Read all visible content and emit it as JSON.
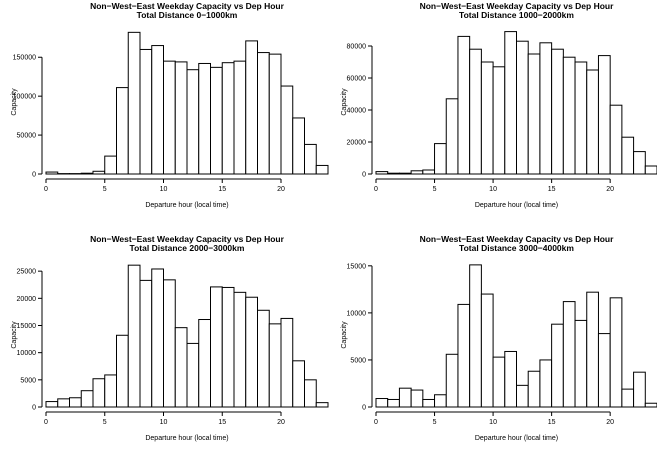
{
  "chart_data": [
    {
      "type": "bar",
      "title": "Non−West−East Weekday Capacity vs Dep Hour",
      "subtitle": "Total Distance 0−1000km",
      "xlabel": "Departure hour (local time)",
      "ylabel": "Capacity",
      "x": [
        0,
        1,
        2,
        3,
        4,
        5,
        6,
        7,
        8,
        9,
        10,
        11,
        12,
        13,
        14,
        15,
        16,
        17,
        18,
        19,
        20,
        21,
        22,
        23
      ],
      "values": [
        2500,
        500,
        500,
        1000,
        3500,
        23000,
        111000,
        182000,
        160000,
        165000,
        145000,
        144000,
        134000,
        142000,
        137000,
        143000,
        145000,
        171000,
        156000,
        154000,
        113000,
        72000,
        38000,
        11000
      ],
      "xlim": [
        0,
        24
      ],
      "ylim": [
        0,
        185000
      ],
      "xticks": [
        0,
        5,
        10,
        15,
        20
      ],
      "yticks": [
        0,
        50000,
        100000,
        150000
      ]
    },
    {
      "type": "bar",
      "title": "Non−West−East Weekday Capacity vs Dep Hour",
      "subtitle": "Total Distance 1000−2000km",
      "xlabel": "Departure hour (local time)",
      "ylabel": "Capacity",
      "x": [
        0,
        1,
        2,
        3,
        4,
        5,
        6,
        7,
        8,
        9,
        10,
        11,
        12,
        13,
        14,
        15,
        16,
        17,
        18,
        19,
        20,
        21,
        22,
        23
      ],
      "values": [
        1500,
        500,
        500,
        2000,
        2500,
        19000,
        47000,
        86000,
        78000,
        70000,
        67000,
        89000,
        83000,
        75000,
        82000,
        78000,
        73000,
        70000,
        65000,
        74000,
        43000,
        23000,
        14000,
        5000
      ],
      "xlim": [
        0,
        24
      ],
      "ylim": [
        0,
        90000
      ],
      "xticks": [
        0,
        5,
        10,
        15,
        20
      ],
      "yticks": [
        0,
        20000,
        40000,
        60000,
        80000
      ]
    },
    {
      "type": "bar",
      "title": "Non−West−East Weekday Capacity vs Dep Hour",
      "subtitle": "Total Distance 2000−3000km",
      "xlabel": "Departure hour (local time)",
      "ylabel": "Capacity",
      "x": [
        0,
        1,
        2,
        3,
        4,
        5,
        6,
        7,
        8,
        9,
        10,
        11,
        12,
        13,
        14,
        15,
        16,
        17,
        18,
        19,
        20,
        21,
        22,
        23
      ],
      "values": [
        1000,
        1500,
        1700,
        3000,
        5200,
        5900,
        13200,
        26100,
        23300,
        25400,
        23400,
        14600,
        11700,
        16100,
        22100,
        22000,
        21100,
        20200,
        17800,
        15300,
        16300,
        8500,
        5000,
        800
      ],
      "xlim": [
        0,
        24
      ],
      "ylim": [
        0,
        26500
      ],
      "xticks": [
        0,
        5,
        10,
        15,
        20
      ],
      "yticks": [
        0,
        5000,
        10000,
        15000,
        20000,
        25000
      ]
    },
    {
      "type": "bar",
      "title": "Non−West−East Weekday Capacity vs Dep Hour",
      "subtitle": "Total Distance 3000−4000km",
      "xlabel": "Departure hour (local time)",
      "ylabel": "Capacity",
      "x": [
        0,
        1,
        2,
        3,
        4,
        5,
        6,
        7,
        8,
        9,
        10,
        11,
        12,
        13,
        14,
        15,
        16,
        17,
        18,
        19,
        20,
        21,
        22,
        23
      ],
      "values": [
        900,
        800,
        2000,
        1800,
        800,
        1300,
        5600,
        10900,
        15100,
        12000,
        5300,
        5900,
        2300,
        3800,
        5000,
        8800,
        11200,
        9200,
        12200,
        7800,
        11600,
        1900,
        3700,
        400
      ],
      "xlim": [
        0,
        24
      ],
      "ylim": [
        0,
        15300
      ],
      "xticks": [
        0,
        5,
        10,
        15,
        20
      ],
      "yticks": [
        0,
        5000,
        10000,
        15000
      ]
    }
  ]
}
